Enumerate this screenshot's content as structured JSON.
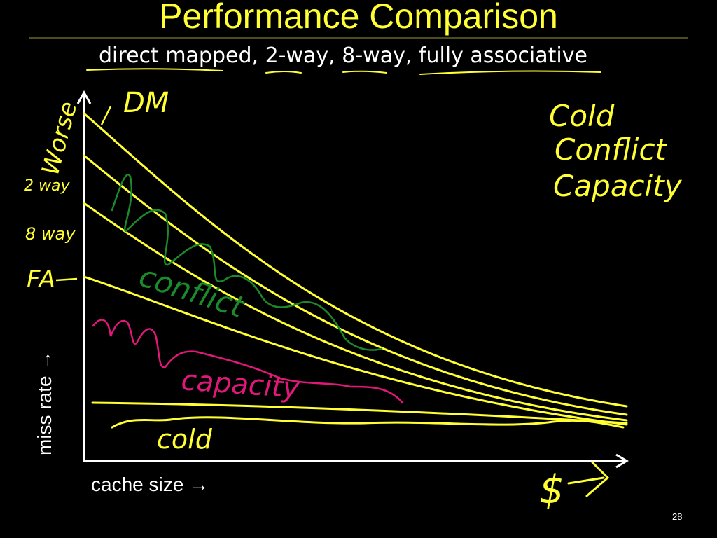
{
  "slide": {
    "title": "Performance Comparison",
    "subtitle": "direct mapped, 2-way, 8-way, fully associative",
    "page_number": "28"
  },
  "axes": {
    "y_label": "miss rate →",
    "x_label": "cache size →"
  },
  "annotations": {
    "dm": "DM",
    "two_way": "2 way",
    "eight_way": "8 way",
    "fa": "FA",
    "worse": "Worse",
    "conflict": "conflict",
    "capacity": "capacity",
    "cold": "cold",
    "legend_cold": "Cold",
    "legend_conflict": "Conflict",
    "legend_capacity": "Capacity",
    "dollar": "$"
  },
  "colors": {
    "background": "#000000",
    "title": "#ffff33",
    "curve": "#ffff33",
    "conflict_ink": "#1a8a2a",
    "capacity_ink": "#e0187a",
    "axis": "#ffffff"
  }
}
